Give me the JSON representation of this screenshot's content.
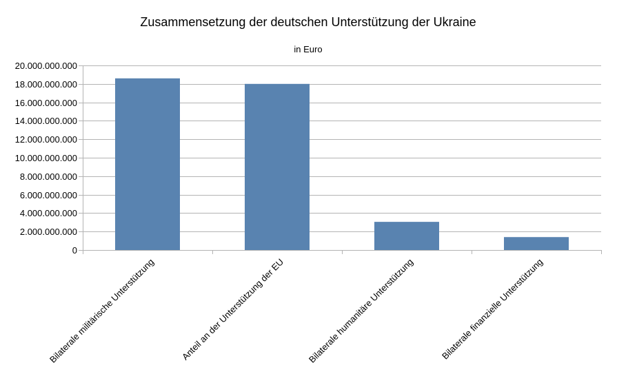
{
  "chart_data": {
    "type": "bar",
    "title": "Zusammensetzung der deutschen Unterstützung der Ukraine",
    "subtitle": "in Euro",
    "xlabel": "",
    "ylabel": "",
    "categories": [
      "Bilaterale militärische Unterstützung",
      "Anteil an der Unterstützung der EU",
      "Bilaterale humanitäre Unterstützung",
      "Bilaterale finanzielle Unterstützung"
    ],
    "values": [
      18600000000,
      18000000000,
      3050000000,
      1400000000
    ],
    "ylim": [
      0,
      20000000000
    ],
    "yticks": [
      {
        "value": 0,
        "label": "0"
      },
      {
        "value": 2000000000,
        "label": "2.000.000.000"
      },
      {
        "value": 4000000000,
        "label": "4.000.000.000"
      },
      {
        "value": 6000000000,
        "label": "6.000.000.000"
      },
      {
        "value": 8000000000,
        "label": "8.000.000.000"
      },
      {
        "value": 10000000000,
        "label": "10.000.000.000"
      },
      {
        "value": 12000000000,
        "label": "12.000.000.000"
      },
      {
        "value": 14000000000,
        "label": "14.000.000.000"
      },
      {
        "value": 16000000000,
        "label": "16.000.000.000"
      },
      {
        "value": 18000000000,
        "label": "18.000.000.000"
      },
      {
        "value": 20000000000,
        "label": "20.000.000.000"
      }
    ],
    "grid": true,
    "legend": "none",
    "colors": {
      "bar": "#5983b0",
      "grid": "#b3b3b3",
      "axis": "#b3b3b3",
      "text": "#000000"
    }
  }
}
